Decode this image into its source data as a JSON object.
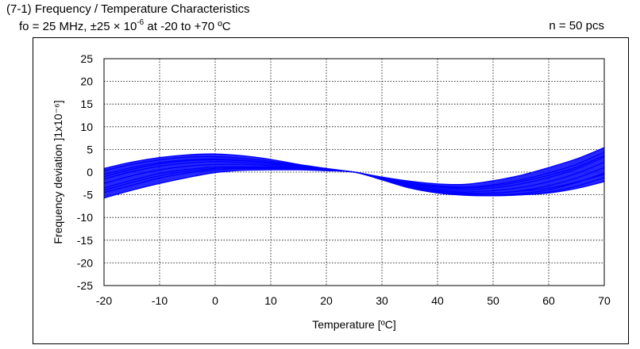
{
  "header": {
    "title": "(7-1) Frequency / Temperature Characteristics",
    "subtitle_prefix": "fo = 25 MHz, ±25 × 10",
    "subtitle_exp": "-6",
    "subtitle_suffix": " at -20  to +70 ºC",
    "sample_count": "n = 50 pcs"
  },
  "chart_data": {
    "type": "line",
    "xlabel": "Temperature [ºC]",
    "ylabel": "Frequency deviation ]1x10⁻⁶]",
    "xlim": [
      -20,
      70
    ],
    "ylim": [
      -25,
      25
    ],
    "x_ticks": [
      "-20",
      "-10",
      "0",
      "10",
      "20",
      "30",
      "40",
      "50",
      "60",
      "70"
    ],
    "y_ticks": [
      "25",
      "20",
      "15",
      "10",
      "5",
      "0",
      "-5",
      "-10",
      "-15",
      "-20",
      "-25"
    ],
    "grid": true,
    "grid_style": "dotted",
    "series_color": "#0000ff",
    "x": [
      -20,
      -15,
      -10,
      -5,
      0,
      5,
      10,
      15,
      20,
      25,
      30,
      35,
      40,
      45,
      50,
      55,
      60,
      65,
      70
    ],
    "series": [
      {
        "values": [
          0.8,
          2.2,
          3.2,
          3.8,
          4.0,
          3.6,
          2.8,
          1.7,
          0.8,
          0.0,
          -1.1,
          -2.0,
          -2.6,
          -2.7,
          -1.9,
          -0.7,
          1.0,
          2.9,
          5.4
        ]
      },
      {
        "values": [
          0.3,
          1.7,
          2.7,
          3.3,
          3.4,
          3.0,
          2.4,
          1.5,
          0.7,
          0.0,
          -1.2,
          -2.3,
          -3.0,
          -3.3,
          -2.8,
          -1.7,
          -0.2,
          1.7,
          4.4
        ]
      },
      {
        "values": [
          -0.5,
          1.0,
          2.1,
          2.7,
          2.9,
          2.6,
          2.1,
          1.4,
          0.6,
          0.0,
          -1.2,
          -2.5,
          -3.3,
          -3.8,
          -3.5,
          -2.6,
          -1.2,
          0.7,
          3.3
        ]
      },
      {
        "values": [
          -1.5,
          0.1,
          1.3,
          2.0,
          2.3,
          2.1,
          1.7,
          1.2,
          0.5,
          0.0,
          -1.3,
          -2.7,
          -3.6,
          -4.2,
          -4.1,
          -3.4,
          -2.1,
          -0.3,
          2.2
        ]
      },
      {
        "values": [
          -2.5,
          -0.8,
          0.5,
          1.3,
          1.7,
          1.7,
          1.4,
          1.0,
          0.5,
          0.0,
          -1.4,
          -2.9,
          -3.9,
          -4.5,
          -4.6,
          -4.1,
          -3.0,
          -1.3,
          1.0
        ]
      },
      {
        "values": [
          -3.5,
          -1.8,
          -0.3,
          0.6,
          1.1,
          1.2,
          1.1,
          0.9,
          0.4,
          0.0,
          -1.5,
          -3.1,
          -4.2,
          -4.8,
          -5.0,
          -4.7,
          -3.9,
          -2.3,
          -0.2
        ]
      },
      {
        "values": [
          -4.5,
          -2.9,
          -1.3,
          -0.2,
          0.5,
          0.8,
          0.8,
          0.7,
          0.4,
          0.0,
          -1.6,
          -3.3,
          -4.4,
          -5.0,
          -5.2,
          -5.0,
          -4.4,
          -3.1,
          -1.2
        ]
      },
      {
        "values": [
          -5.7,
          -4.0,
          -2.5,
          -1.2,
          -0.1,
          0.4,
          0.5,
          0.5,
          0.3,
          0.0,
          -1.7,
          -3.5,
          -4.6,
          -5.1,
          -5.2,
          -5.0,
          -4.6,
          -3.6,
          -2.1
        ]
      },
      {
        "values": [
          -4.0,
          -2.3,
          -0.8,
          0.2,
          0.8,
          1.0,
          1.0,
          0.8,
          0.4,
          0.0,
          -1.5,
          -3.0,
          -4.0,
          -4.6,
          -4.6,
          -4.2,
          -3.5,
          -2.2,
          -0.5
        ]
      },
      {
        "values": [
          -1.0,
          0.6,
          1.8,
          2.5,
          2.7,
          2.5,
          2.0,
          1.3,
          0.6,
          0.0,
          -1.2,
          -2.4,
          -3.2,
          -3.5,
          -3.1,
          -2.1,
          -0.7,
          1.1,
          3.7
        ]
      }
    ]
  }
}
